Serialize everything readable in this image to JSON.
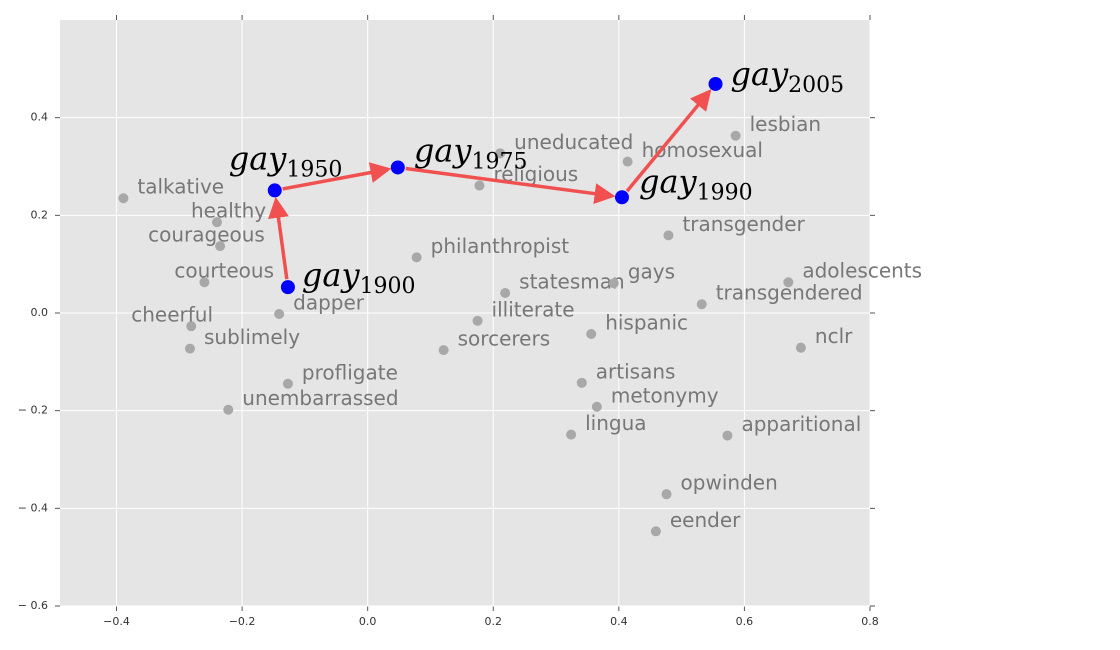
{
  "chart_data": {
    "type": "scatter",
    "xlim": [
      -0.49,
      0.8
    ],
    "ylim": [
      -0.6,
      0.6
    ],
    "xticks": [
      {
        "value": -0.4,
        "label": "−0.4"
      },
      {
        "value": -0.2,
        "label": "−0.2"
      },
      {
        "value": 0,
        "label": "0.0"
      },
      0.2,
      0.4,
      0.6,
      0.8
    ],
    "yticks": [
      {
        "value": -0.6,
        "label": "− 0.6"
      },
      {
        "value": -0.4,
        "label": "− 0.4"
      },
      {
        "value": -0.2,
        "label": "− 0.2"
      },
      {
        "value": 0,
        "label": "0.0"
      },
      0.2,
      0.4
    ],
    "grid": true,
    "color": "#a8a8a8",
    "labels": [
      "talkative",
      "healthy",
      "courageous",
      "courteous",
      "cheerful",
      "sublimely",
      "dapper",
      "profligate",
      "unembarrassed",
      "philanthropist",
      "uneducated",
      "religious",
      "statesman",
      "illiterate",
      "sorcerers",
      "homosexual",
      "lesbian",
      "transgender",
      "gays",
      "adolescents",
      "transgendered",
      "hispanic",
      "nclr",
      "artisans",
      "metonymy",
      "lingua",
      "apparitional",
      "opwinden",
      "eender"
    ],
    "x": [
      -0.389,
      -0.24,
      -0.235,
      -0.26,
      -0.281,
      -0.283,
      -0.141,
      -0.127,
      -0.222,
      0.078,
      0.211,
      0.178,
      0.219,
      0.175,
      0.121,
      0.414,
      0.586,
      0.479,
      0.392,
      0.67,
      0.532,
      0.356,
      0.69,
      0.341,
      0.365,
      0.324,
      0.573,
      0.476,
      0.459
    ],
    "values": [
      0.235,
      0.186,
      0.137,
      0.063,
      -0.027,
      -0.073,
      -0.002,
      -0.145,
      -0.198,
      0.114,
      0.327,
      0.261,
      0.041,
      -0.016,
      -0.076,
      0.31,
      0.363,
      0.159,
      0.061,
      0.063,
      0.018,
      -0.043,
      -0.071,
      -0.143,
      -0.192,
      -0.249,
      -0.251,
      -0.371,
      -0.447
    ],
    "highlight": {
      "color": "#0000ff",
      "arrow_color": "#f05050",
      "word": "gay",
      "years": [
        "1900",
        "1950",
        "1975",
        "1990",
        "2005"
      ],
      "x": [
        -0.127,
        -0.148,
        0.048,
        0.405,
        0.554
      ],
      "values": [
        0.053,
        0.251,
        0.298,
        0.237,
        0.469
      ]
    }
  }
}
